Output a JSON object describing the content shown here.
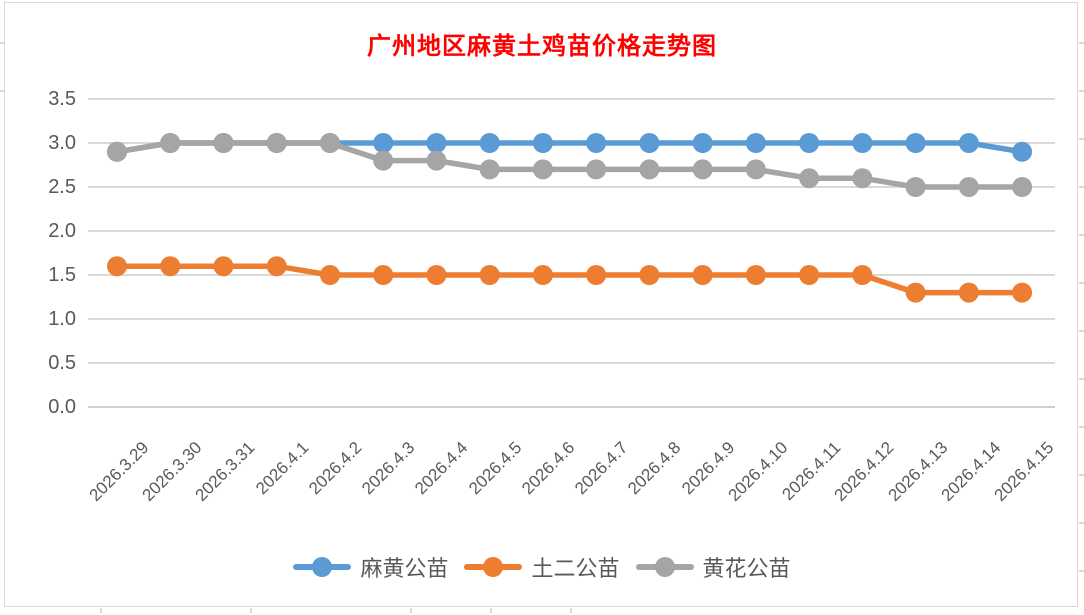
{
  "chart_data": {
    "type": "line",
    "title": "广州地区麻黄土鸡苗价格走势图",
    "title_color": "#FF0000",
    "categories": [
      "2026.3.29",
      "2026.3.30",
      "2026.3.31",
      "2026.4.1",
      "2026.4.2",
      "2026.4.3",
      "2026.4.4",
      "2026.4.5",
      "2026.4.6",
      "2026.4.7",
      "2026.4.8",
      "2026.4.9",
      "2026.4.10",
      "2026.4.11",
      "2026.4.12",
      "2026.4.13",
      "2026.4.14",
      "2026.4.15"
    ],
    "series": [
      {
        "name": "麻黄公苗",
        "color": "#5B9BD5",
        "values": [
          2.9,
          3.0,
          3.0,
          3.0,
          3.0,
          3.0,
          3.0,
          3.0,
          3.0,
          3.0,
          3.0,
          3.0,
          3.0,
          3.0,
          3.0,
          3.0,
          3.0,
          2.9
        ]
      },
      {
        "name": "土二公苗",
        "color": "#ED7D31",
        "values": [
          1.6,
          1.6,
          1.6,
          1.6,
          1.5,
          1.5,
          1.5,
          1.5,
          1.5,
          1.5,
          1.5,
          1.5,
          1.5,
          1.5,
          1.5,
          1.3,
          1.3,
          1.3
        ]
      },
      {
        "name": "黄花公苗",
        "color": "#A5A5A5",
        "values": [
          2.9,
          3.0,
          3.0,
          3.0,
          3.0,
          2.8,
          2.8,
          2.7,
          2.7,
          2.7,
          2.7,
          2.7,
          2.7,
          2.6,
          2.6,
          2.5,
          2.5,
          2.5
        ]
      }
    ],
    "xlabel": "",
    "ylabel": "",
    "ylim": [
      0,
      3.5
    ],
    "ytick_labels": [
      "0.0",
      "0.5",
      "1.0",
      "1.5",
      "2.0",
      "2.5",
      "3.0",
      "3.5"
    ],
    "grid": true,
    "legend_position": "bottom",
    "axis_text_color": "#595959",
    "gridline_color": "#D9D9D9",
    "baseline_color": "#CFCFCF"
  }
}
